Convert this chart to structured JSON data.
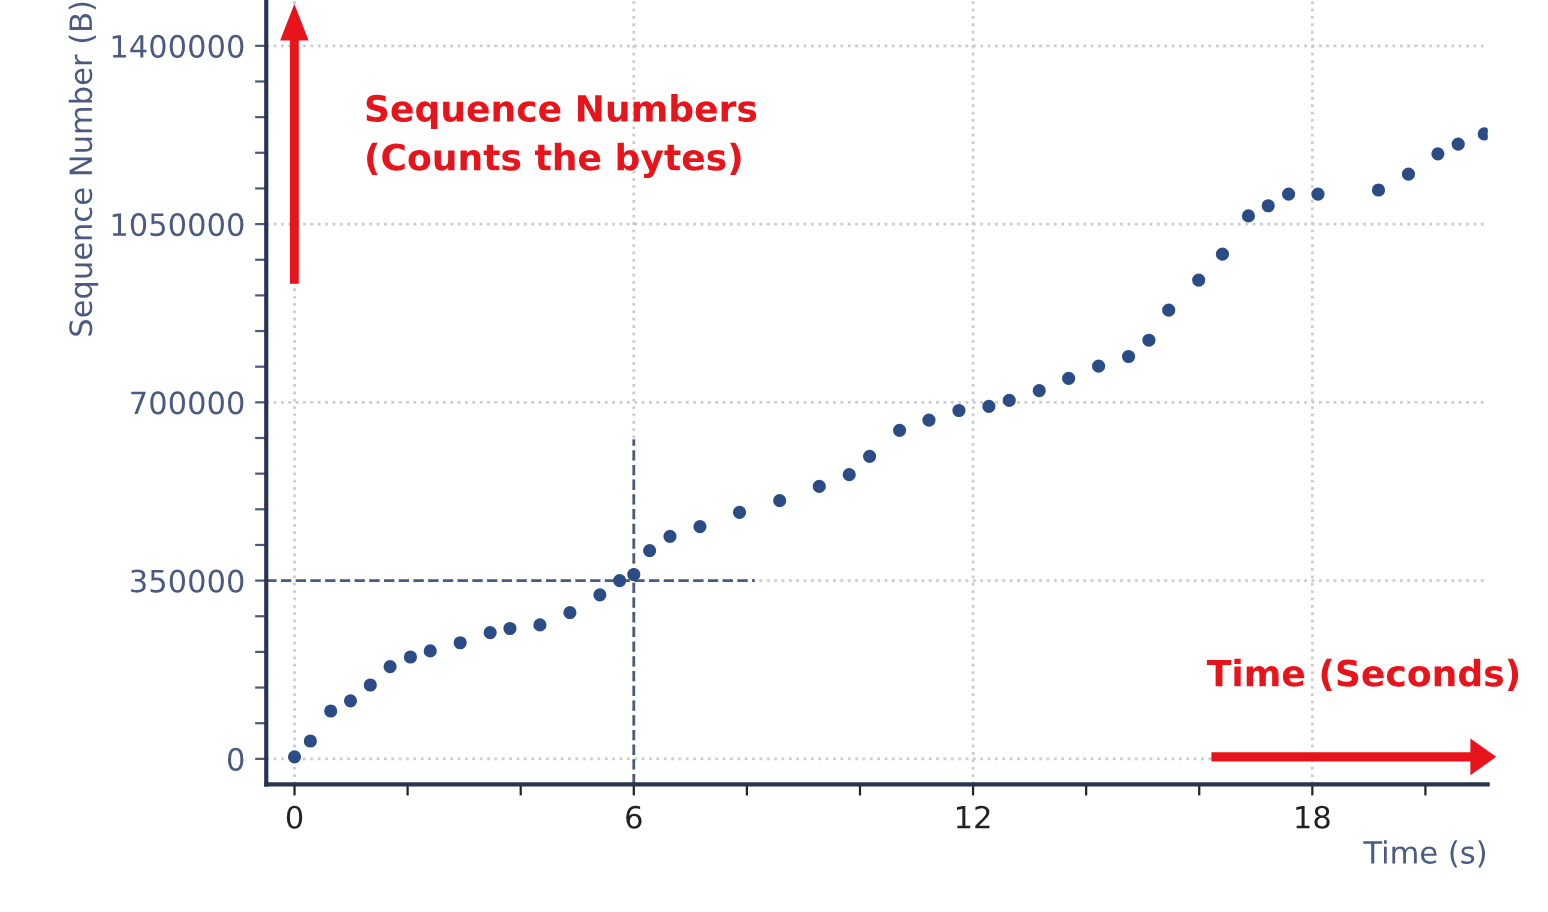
{
  "chart_data": {
    "type": "scatter",
    "xlabel": "Time (s)",
    "ylabel": "Sequence Number (B)",
    "x": [
      0,
      0.28,
      0.64,
      0.99,
      1.34,
      1.69,
      2.05,
      2.4,
      2.93,
      3.46,
      3.81,
      4.34,
      4.87,
      5.4,
      5.75,
      6,
      6.28,
      6.64,
      7.17,
      7.87,
      8.58,
      9.28,
      9.81,
      10.17,
      10.7,
      11.22,
      11.75,
      12.28,
      12.64,
      13.17,
      13.69,
      14.22,
      14.75,
      15.11,
      15.46,
      15.99,
      16.41,
      16.87,
      17.22,
      17.58,
      18.1,
      19.17,
      19.7,
      20.22,
      20.58,
      21.04
    ],
    "series": [
      {
        "color": "#2b4c85",
        "values": [
          4000,
          35000,
          94000,
          114000,
          145000,
          181000,
          200000,
          212000,
          228000,
          248000,
          256000,
          263000,
          287000,
          322000,
          350000,
          362000,
          409000,
          437000,
          456000,
          484000,
          507000,
          535000,
          558000,
          594000,
          645000,
          665000,
          684000,
          692000,
          704000,
          723000,
          747000,
          771000,
          790000,
          822000,
          881000,
          940000,
          991000,
          1066000,
          1086000,
          1109000,
          1109000,
          1117000,
          1148000,
          1188000,
          1207000,
          1227000
        ]
      }
    ],
    "xlim": [
      -0.5,
      21.1
    ],
    "ylim": [
      -50000,
      1490000
    ],
    "xticks": [
      0,
      {
        "value": 2,
        "label": null
      },
      {
        "value": 4,
        "label": null
      },
      6,
      {
        "value": 8,
        "label": null
      },
      {
        "value": 10,
        "label": null
      },
      12,
      {
        "value": 14,
        "label": null
      },
      {
        "value": 16,
        "label": null
      },
      18,
      {
        "value": 20,
        "label": null
      }
    ],
    "yticks": [
      0,
      {
        "value": 70000,
        "label": null
      },
      {
        "value": 140000,
        "label": null
      },
      {
        "value": 210000,
        "label": null
      },
      {
        "value": 280000,
        "label": null
      },
      350000,
      {
        "value": 420000,
        "label": null
      },
      {
        "value": 490000,
        "label": null
      },
      {
        "value": 560000,
        "label": null
      },
      {
        "value": 630000,
        "label": null
      },
      700000,
      {
        "value": 770000,
        "label": null
      },
      {
        "value": 840000,
        "label": null
      },
      {
        "value": 910000,
        "label": null
      },
      {
        "value": 980000,
        "label": null
      },
      1050000,
      {
        "value": 1120000,
        "label": null
      },
      {
        "value": 1190000,
        "label": null
      },
      {
        "value": 1260000,
        "label": null
      },
      {
        "value": 1330000,
        "label": null
      },
      1400000
    ],
    "grid": true,
    "marker": "circle",
    "ref_lines": [
      {
        "axis": "x",
        "value": 6,
        "color": "#4a5a80",
        "line_style": "dashed"
      },
      {
        "axis": "y",
        "value": 350000,
        "color": "#4a5a80",
        "line_style": "dashed"
      }
    ],
    "annotations": [
      "Sequence Numbers\n(Counts the bytes)",
      "Time (Seconds)"
    ]
  }
}
